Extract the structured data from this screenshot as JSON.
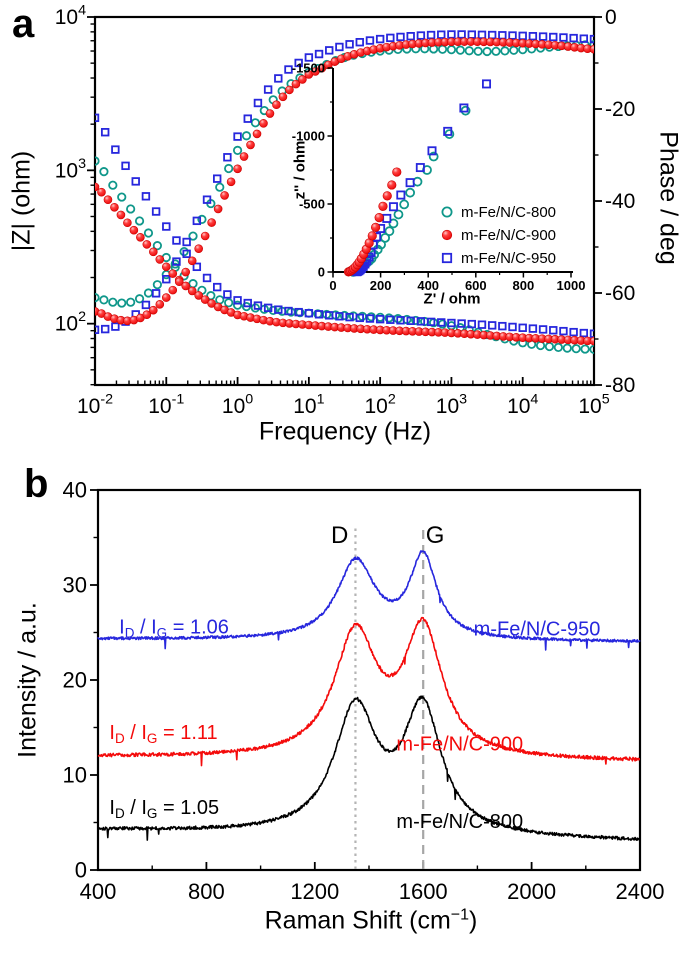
{
  "figure": {
    "panel_a_tag": "a",
    "panel_b_tag": "b",
    "background": "#ffffff"
  },
  "colors": {
    "c800": "#0f978a",
    "c900": "#f40b0b",
    "c950": "#2727dd",
    "black": "#000000",
    "dotted_line": "#b4b4b4",
    "dashed_line": "#a6a6a6"
  },
  "chart_data": [
    {
      "type": "scatter",
      "id": "bode",
      "xlabel": "Frequency (Hz)",
      "ylabel_left": "|Z| (ohm)",
      "ylabel_right": "Phase / deg",
      "x_log_range": [
        -2,
        5
      ],
      "y_left_log_range": [
        1.6,
        4
      ],
      "y_right_range": [
        0,
        -80
      ],
      "x_tick_exponents": [
        -2,
        -1,
        0,
        1,
        2,
        3,
        4,
        5
      ],
      "y_left_tick_exponents": [
        2,
        3,
        4
      ],
      "y_right_ticks": [
        0,
        -20,
        -40,
        -60,
        -80
      ],
      "tick_base": "10",
      "series": [
        {
          "name": "m-Fe/N/C-800",
          "color": "#0f978a",
          "marker": "circle-open",
          "markers_per_decade": 8,
          "zmod": [
            [
              -2,
              1150
            ],
            [
              -1.75,
              800
            ],
            [
              -1.5,
              560
            ],
            [
              -1.25,
              390
            ],
            [
              -1,
              270
            ],
            [
              -0.75,
              205
            ],
            [
              -0.5,
              165
            ],
            [
              -0.25,
              143
            ],
            [
              0,
              132
            ],
            [
              0.5,
              122
            ],
            [
              1,
              117
            ],
            [
              1.5,
              113
            ],
            [
              2,
              110
            ],
            [
              2.5,
              105
            ],
            [
              3,
              97
            ],
            [
              3.5,
              85
            ],
            [
              4,
              75
            ],
            [
              4.5,
              70
            ],
            [
              5,
              68
            ]
          ],
          "phase": [
            [
              -2,
              -61
            ],
            [
              -1.75,
              -62
            ],
            [
              -1.5,
              -62
            ],
            [
              -1.25,
              -60
            ],
            [
              -1,
              -56
            ],
            [
              -0.75,
              -51
            ],
            [
              -0.5,
              -44
            ],
            [
              -0.25,
              -37
            ],
            [
              0,
              -29
            ],
            [
              0.25,
              -23
            ],
            [
              0.5,
              -18
            ],
            [
              0.75,
              -14.5
            ],
            [
              1,
              -12
            ],
            [
              1.5,
              -8.8
            ],
            [
              2,
              -7.4
            ],
            [
              2.5,
              -6.9
            ],
            [
              3,
              -7.1
            ],
            [
              3.5,
              -7.5
            ],
            [
              4,
              -7.1
            ],
            [
              4.5,
              -6.4
            ],
            [
              5,
              -6
            ]
          ]
        },
        {
          "name": "m-Fe/N/C-900",
          "color": "#f40b0b",
          "marker": "circle-filled",
          "markers_per_decade": 11,
          "zmod": [
            [
              -2,
              780
            ],
            [
              -1.75,
              590
            ],
            [
              -1.5,
              430
            ],
            [
              -1.25,
              320
            ],
            [
              -1,
              235
            ],
            [
              -0.75,
              180
            ],
            [
              -0.5,
              148
            ],
            [
              -0.25,
              127
            ],
            [
              0,
              114
            ],
            [
              0.5,
              103
            ],
            [
              1,
              98
            ],
            [
              1.5,
              94
            ],
            [
              2,
              91
            ],
            [
              2.5,
              89
            ],
            [
              3,
              87
            ],
            [
              3.5,
              84
            ],
            [
              4,
              81
            ],
            [
              4.5,
              79
            ],
            [
              5,
              77
            ]
          ],
          "phase": [
            [
              -2,
              -64
            ],
            [
              -1.75,
              -65.5
            ],
            [
              -1.5,
              -66
            ],
            [
              -1.25,
              -64.5
            ],
            [
              -1,
              -61
            ],
            [
              -0.75,
              -56
            ],
            [
              -0.5,
              -49
            ],
            [
              -0.25,
              -41
            ],
            [
              0,
              -33
            ],
            [
              0.25,
              -26
            ],
            [
              0.5,
              -20
            ],
            [
              0.75,
              -15.5
            ],
            [
              1,
              -12.5
            ],
            [
              1.5,
              -8.8
            ],
            [
              2,
              -6.8
            ],
            [
              2.5,
              -5.8
            ],
            [
              3,
              -5.4
            ],
            [
              3.5,
              -5.4
            ],
            [
              4,
              -5.7
            ],
            [
              4.5,
              -6.2
            ],
            [
              5,
              -7
            ]
          ]
        },
        {
          "name": "m-Fe/N/C-950",
          "color": "#2727dd",
          "marker": "square-open",
          "markers_per_decade": 7,
          "zmod": [
            [
              -2,
              2200
            ],
            [
              -1.75,
              1450
            ],
            [
              -1.5,
              950
            ],
            [
              -1.25,
              640
            ],
            [
              -1,
              430
            ],
            [
              -0.75,
              300
            ],
            [
              -0.5,
              215
            ],
            [
              -0.25,
              168
            ],
            [
              0,
              142
            ],
            [
              0.5,
              125
            ],
            [
              1,
              117
            ],
            [
              1.5,
              111
            ],
            [
              2,
              107
            ],
            [
              2.5,
              104
            ],
            [
              3,
              101
            ],
            [
              3.5,
              98
            ],
            [
              4,
              94
            ],
            [
              4.5,
              90
            ],
            [
              5,
              86
            ]
          ],
          "phase": [
            [
              -2,
              -68
            ],
            [
              -1.75,
              -67.5
            ],
            [
              -1.5,
              -65.5
            ],
            [
              -1.25,
              -62
            ],
            [
              -1,
              -57
            ],
            [
              -0.75,
              -50
            ],
            [
              -0.5,
              -42
            ],
            [
              -0.25,
              -34
            ],
            [
              0,
              -26
            ],
            [
              0.25,
              -19.5
            ],
            [
              0.5,
              -14.5
            ],
            [
              0.75,
              -11
            ],
            [
              1,
              -8.8
            ],
            [
              1.5,
              -6.2
            ],
            [
              2,
              -4.8
            ],
            [
              2.5,
              -4.1
            ],
            [
              3,
              -3.8
            ],
            [
              3.5,
              -3.9
            ],
            [
              4,
              -4.1
            ],
            [
              4.5,
              -4.4
            ],
            [
              5,
              -4.8
            ]
          ]
        }
      ]
    },
    {
      "type": "scatter",
      "id": "nyquist-inset",
      "xlabel": "Z' / ohm",
      "ylabel": "z'' / ohm",
      "x_range": [
        0,
        1000
      ],
      "y_range": [
        0,
        -1500
      ],
      "x_ticks": [
        0,
        200,
        400,
        600,
        800,
        1000
      ],
      "y_ticks": [
        0,
        -500,
        -1000,
        -1500
      ],
      "legend_position": "inside-right",
      "series": [
        {
          "name": "m-Fe/N/C-800",
          "color": "#0f978a",
          "marker": "circle-open",
          "points": [
            [
              85,
              -1
            ],
            [
              90,
              -3
            ],
            [
              96,
              -7
            ],
            [
              103,
              -13
            ],
            [
              112,
              -22
            ],
            [
              121,
              -34
            ],
            [
              131,
              -49
            ],
            [
              142,
              -67
            ],
            [
              152,
              -82
            ],
            [
              162,
              -98
            ],
            [
              173,
              -128
            ],
            [
              188,
              -165
            ],
            [
              202,
              -202
            ],
            [
              219,
              -251
            ],
            [
              237,
              -300
            ],
            [
              254,
              -357
            ],
            [
              275,
              -423
            ],
            [
              299,
              -497
            ],
            [
              324,
              -583
            ],
            [
              355,
              -664
            ],
            [
              395,
              -750
            ],
            [
              423,
              -849
            ],
            [
              489,
              -1014
            ],
            [
              557,
              -1186
            ]
          ]
        },
        {
          "name": "m-Fe/N/C-900",
          "color": "#f40b0b",
          "marker": "circle-filled",
          "points": [
            [
              65,
              -1
            ],
            [
              70,
              -4
            ],
            [
              75,
              -9
            ],
            [
              81,
              -16
            ],
            [
              87,
              -25
            ],
            [
              94,
              -37
            ],
            [
              102,
              -53
            ],
            [
              110,
              -73
            ],
            [
              119,
              -98
            ],
            [
              129,
              -130
            ],
            [
              140,
              -168
            ],
            [
              152,
              -213
            ],
            [
              165,
              -266
            ],
            [
              179,
              -328
            ],
            [
              194,
              -400
            ],
            [
              210,
              -483
            ],
            [
              228,
              -560
            ],
            [
              247,
              -640
            ],
            [
              268,
              -735
            ]
          ]
        },
        {
          "name": "m-Fe/N/C-950",
          "color": "#2727dd",
          "marker": "square-open",
          "points": [
            [
              100,
              -2
            ],
            [
              104,
              -5
            ],
            [
              109,
              -10
            ],
            [
              114,
              -17
            ],
            [
              120,
              -27
            ],
            [
              127,
              -41
            ],
            [
              134,
              -59
            ],
            [
              142,
              -82
            ],
            [
              151,
              -110
            ],
            [
              160,
              -143
            ],
            [
              169,
              -200
            ],
            [
              183,
              -258
            ],
            [
              200,
              -320
            ],
            [
              226,
              -394
            ],
            [
              254,
              -480
            ],
            [
              285,
              -566
            ],
            [
              324,
              -657
            ],
            [
              367,
              -768
            ],
            [
              416,
              -891
            ],
            [
              482,
              -1034
            ],
            [
              550,
              -1206
            ],
            [
              645,
              -1383
            ]
          ]
        }
      ]
    },
    {
      "type": "line",
      "id": "raman",
      "xlabel_main": "Raman Shift (cm",
      "xlabel_sup": "−1",
      "xlabel_close": ")",
      "ylabel": "Intensity / a.u.",
      "x_range": [
        400,
        2400
      ],
      "y_range": [
        0,
        40
      ],
      "x_ticks": [
        400,
        800,
        1200,
        1600,
        2000,
        2400
      ],
      "y_ticks": [
        0,
        10,
        20,
        30,
        40
      ],
      "ratio_parts": {
        "i": "I",
        "d": "D",
        "slash_i": " / I",
        "g": "G",
        "eq": " = "
      },
      "band_lines": [
        {
          "label": "D",
          "x": 1350,
          "style": "dotted",
          "label_x": 1292,
          "label_y": 34.4,
          "top_value": 36.3
        },
        {
          "label": "G",
          "x": 1600,
          "style": "dashed",
          "label_x": 1644,
          "label_y": 34.4,
          "top_value": 36.3
        }
      ],
      "series": [
        {
          "name": "m-Fe/N/C-800",
          "color": "#000000",
          "ratio_value": "1.05",
          "baseline_left": 4.2,
          "baseline_right": 3.0,
          "peaks": [
            {
              "center": 1350,
              "amp": 13.0,
              "hwhm": 95
            },
            {
              "center": 1598,
              "amp": 13.0,
              "hwhm": 85
            }
          ],
          "noise_amp": 0.17,
          "spike_prob": 0.008,
          "seed": 101,
          "ratio_anchor": [
            442,
            5.9
          ],
          "name_anchor": [
            1735,
            4.4
          ]
        },
        {
          "name": "m-Fe/N/C-900",
          "color": "#f40b0b",
          "ratio_value": "1.11",
          "baseline_left": 11.9,
          "baseline_right": 11.4,
          "peaks": [
            {
              "center": 1350,
              "amp": 12.8,
              "hwhm": 95
            },
            {
              "center": 1600,
              "amp": 13.2,
              "hwhm": 85
            }
          ],
          "noise_amp": 0.18,
          "spike_prob": 0.004,
          "seed": 202,
          "ratio_anchor": [
            442,
            13.8
          ],
          "name_anchor": [
            1735,
            12.6
          ]
        },
        {
          "name": "m-Fe/N/C-950",
          "color": "#2727dd",
          "ratio_value": "1.06",
          "baseline_left": 24.3,
          "baseline_right": 24.0,
          "peaks": [
            {
              "center": 1352,
              "amp": 8.2,
              "hwhm": 85
            },
            {
              "center": 1600,
              "amp": 8.6,
              "hwhm": 60
            }
          ],
          "noise_amp": 0.14,
          "spike_prob": 0.006,
          "seed": 303,
          "ratio_anchor": [
            478,
            24.9
          ],
          "name_anchor": [
            2020,
            24.7
          ]
        }
      ]
    }
  ]
}
